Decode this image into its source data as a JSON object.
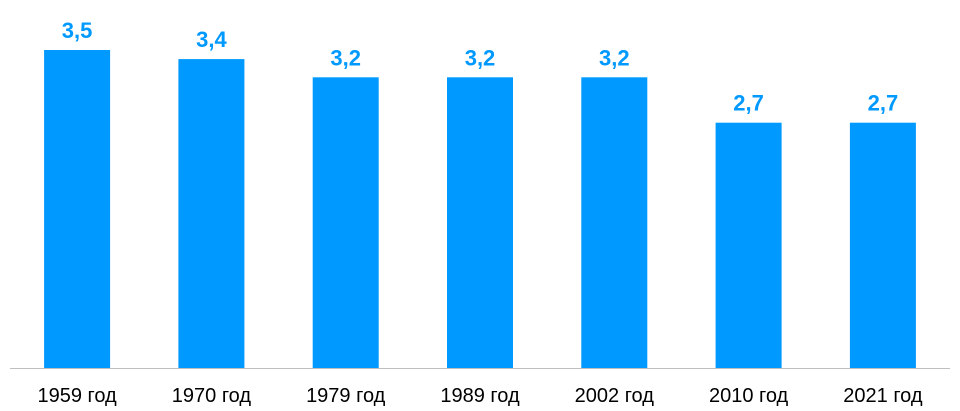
{
  "chart_data": {
    "type": "bar",
    "title": "",
    "xlabel": "",
    "ylabel": "",
    "categories": [
      "1959 год",
      "1970 год",
      "1979 год",
      "1989 год",
      "2002 год",
      "2010 год",
      "2021 год"
    ],
    "values": [
      3.5,
      3.4,
      3.2,
      3.2,
      3.2,
      2.7,
      2.7
    ],
    "value_labels": [
      "3,5",
      "3,4",
      "3,2",
      "3,2",
      "3,2",
      "2,7",
      "2,7"
    ],
    "ylim": [
      0,
      3.5
    ],
    "grid": false,
    "legend": "none",
    "colors": {
      "bar": "#0099FF",
      "value_label": "#0099FF",
      "axis": "#BFBFBF",
      "tick_label": "#000000"
    }
  }
}
